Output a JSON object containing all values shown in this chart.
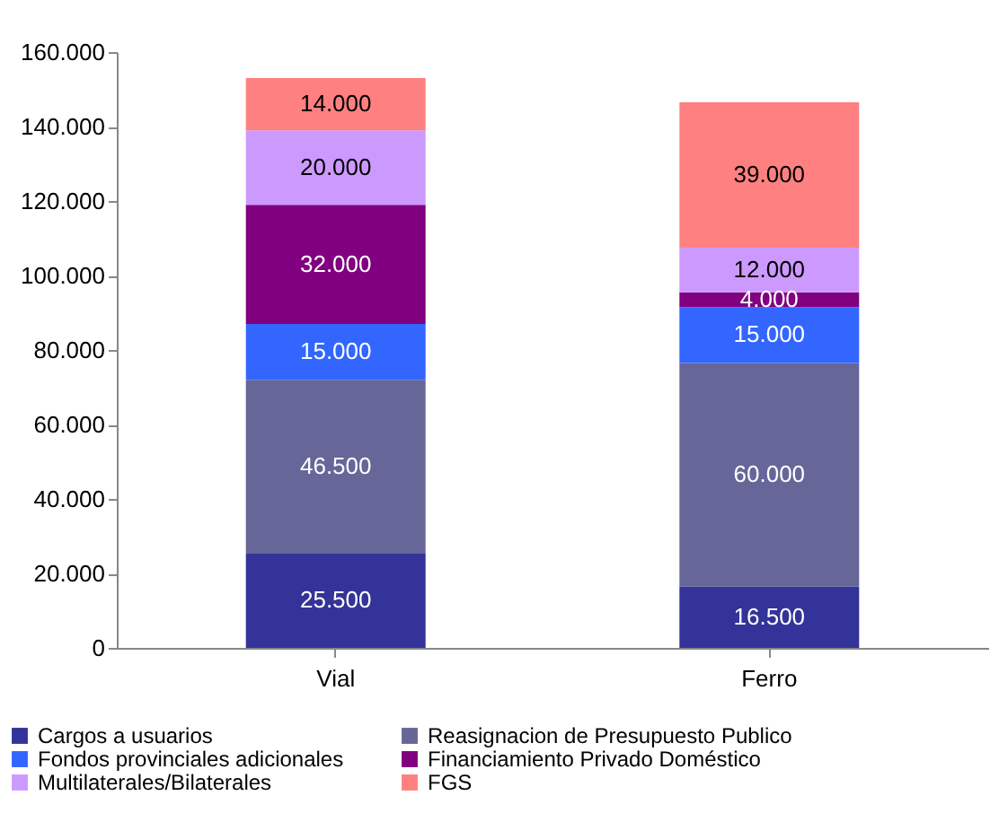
{
  "chart_data": {
    "type": "bar",
    "stacked": true,
    "categories": [
      "Vial",
      "Ferro"
    ],
    "series": [
      {
        "name": "Cargos a usuarios",
        "color": "#333399",
        "values": [
          25500,
          16500
        ],
        "value_labels": [
          "25.500",
          "16.500"
        ]
      },
      {
        "name": "Reasignacion de Presupuesto Publico",
        "color": "#666699",
        "values": [
          46500,
          60000
        ],
        "value_labels": [
          "46.500",
          "60.000"
        ]
      },
      {
        "name": "Fondos provinciales adicionales",
        "color": "#3366ff",
        "values": [
          15000,
          15000
        ],
        "value_labels": [
          "15.000",
          "15.000"
        ]
      },
      {
        "name": "Financiamiento Privado Doméstico",
        "color": "#800080",
        "values": [
          32000,
          4000
        ],
        "value_labels": [
          "32.000",
          "4.000"
        ]
      },
      {
        "name": "Multilaterales/Bilaterales",
        "color": "#cc99ff",
        "values": [
          20000,
          12000
        ],
        "value_labels": [
          "20.000",
          "12.000"
        ]
      },
      {
        "name": "FGS",
        "color": "#ff8080",
        "values": [
          14000,
          39000
        ],
        "value_labels": [
          "14.000",
          "39.000"
        ]
      }
    ],
    "ylim": [
      0,
      160000
    ],
    "yticks": [
      {
        "value": 0,
        "label": "0"
      },
      {
        "value": 20000,
        "label": "20.000"
      },
      {
        "value": 40000,
        "label": "40.000"
      },
      {
        "value": 60000,
        "label": "60.000"
      },
      {
        "value": 80000,
        "label": "80.000"
      },
      {
        "value": 100000,
        "label": "100.000"
      },
      {
        "value": 120000,
        "label": "120.000"
      },
      {
        "value": 140000,
        "label": "140.000"
      },
      {
        "value": 160000,
        "label": "160.000"
      }
    ],
    "grid": false,
    "legend": "bottom"
  }
}
